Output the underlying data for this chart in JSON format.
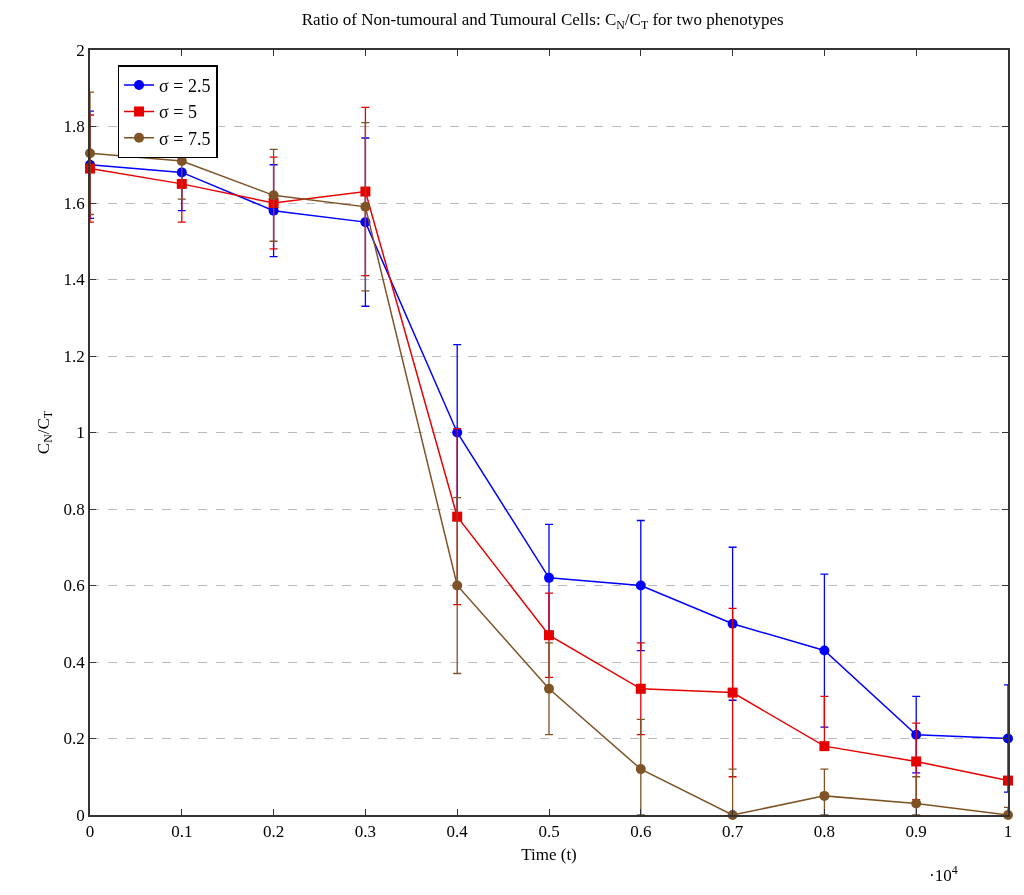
{
  "chart_data": {
    "type": "line",
    "title": "Ratio of Non-tumoural and Tumoural Cells: C$_{N}$/C$_{T}$ for two phenotypes",
    "xlabel": "Time (t)",
    "ylabel": "C$_{N}$/C$_{T}$",
    "x": [
      0,
      0.1,
      0.2,
      0.3,
      0.4,
      0.5,
      0.6,
      0.7,
      0.8,
      0.9,
      1.0
    ],
    "xlim": [
      0,
      1
    ],
    "xticks": [
      0,
      0.1,
      0.2,
      0.3,
      0.4,
      0.5,
      0.6,
      0.7,
      0.8,
      0.9,
      1
    ],
    "ylim": [
      0,
      2
    ],
    "yticks": [
      0,
      0.2,
      0.4,
      0.6,
      0.8,
      1,
      1.2,
      1.4,
      1.6,
      1.8,
      2
    ],
    "grid": "y",
    "legend": "top left",
    "annotations": [
      "·10$^{4}$"
    ],
    "series": [
      {
        "name": "σ = 2.5",
        "color": "#0000ff",
        "marker": "circle",
        "values": [
          1.7,
          1.68,
          1.58,
          1.55,
          1.0,
          0.62,
          0.6,
          0.5,
          0.43,
          0.21,
          0.2
        ],
        "errors": [
          [
            1.56,
            1.84
          ],
          [
            1.58,
            1.68
          ],
          [
            1.46,
            1.7
          ],
          [
            1.33,
            1.77
          ],
          [
            0.77,
            1.23
          ],
          [
            0.48,
            0.76
          ],
          [
            0.43,
            0.77
          ],
          [
            0.3,
            0.7
          ],
          [
            0.23,
            0.63
          ],
          [
            0.11,
            0.31
          ],
          [
            0.06,
            0.34
          ]
        ]
      },
      {
        "name": "σ = 5",
        "color": "#e60000",
        "marker": "square",
        "values": [
          1.69,
          1.65,
          1.6,
          1.63,
          0.78,
          0.47,
          0.33,
          0.32,
          0.18,
          0.14,
          0.09
        ],
        "errors": [
          [
            1.55,
            1.83
          ],
          [
            1.55,
            1.65
          ],
          [
            1.48,
            1.72
          ],
          [
            1.41,
            1.85
          ],
          [
            0.55,
            1.01
          ],
          [
            0.36,
            0.58
          ],
          [
            0.21,
            0.45
          ],
          [
            0.1,
            0.54
          ],
          [
            0.18,
            0.31
          ],
          [
            0.04,
            0.24
          ],
          null
        ]
      },
      {
        "name": "σ = 7.5",
        "color": "#7f5326",
        "marker": "circle",
        "values": [
          1.73,
          1.71,
          1.62,
          1.59,
          0.6,
          0.33,
          0.12,
          0.0,
          0.05,
          0.03,
          0.0
        ],
        "errors": [
          [
            1.57,
            1.89
          ],
          [
            1.61,
            1.71
          ],
          [
            1.5,
            1.74
          ],
          [
            1.37,
            1.81
          ],
          [
            0.37,
            0.83
          ],
          [
            0.21,
            0.45
          ],
          [
            0.0,
            0.25
          ],
          [
            0.0,
            0.12
          ],
          [
            0.0,
            0.12
          ],
          [
            0.0,
            0.1
          ],
          [
            0.0,
            0.02
          ]
        ]
      }
    ]
  }
}
